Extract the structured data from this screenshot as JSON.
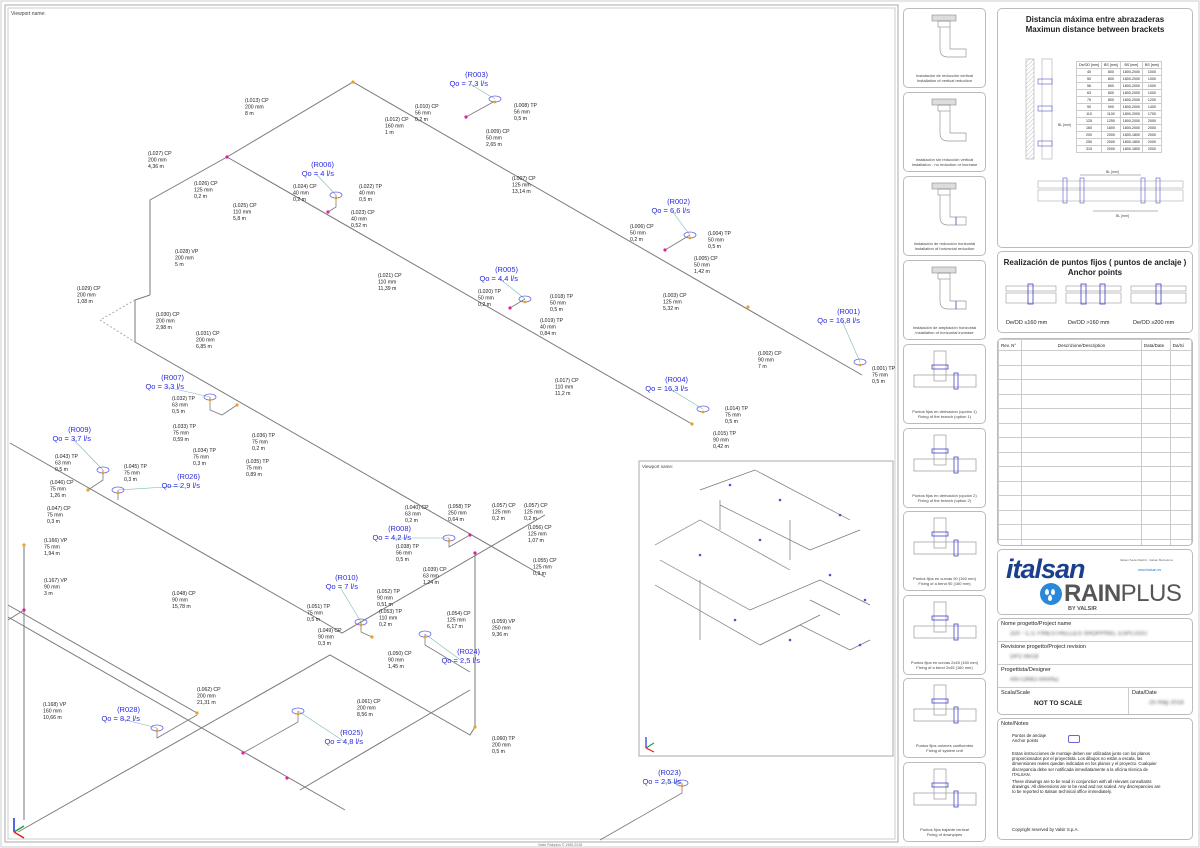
{
  "viewport": {
    "label": "Viewport name:",
    "inset_label": "Viewport name:"
  },
  "colors": {
    "pipe": "#7a7a7a",
    "leader": "#7fb8b0",
    "outlet_label": "#2a2ae0",
    "fitting": "#f0a020",
    "junction": "#e020a0"
  },
  "labels": [
    {
      "id": "(L001) TP",
      "dia": "75 mm",
      "len": "0,5 m"
    },
    {
      "id": "(L002) CP",
      "dia": "90 mm",
      "len": "7 m"
    },
    {
      "id": "(L003) CP",
      "dia": "125 mm",
      "len": "5,32 m"
    },
    {
      "id": "(L004) TP",
      "dia": "50 mm",
      "len": "0,5 m"
    },
    {
      "id": "(L005) CP",
      "dia": "50 mm",
      "len": "1,42 m"
    },
    {
      "id": "(L006) CP",
      "dia": "50 mm",
      "len": "0,2 m"
    },
    {
      "id": "(L007) CP",
      "dia": "125 mm",
      "len": "13,14 m"
    },
    {
      "id": "(L008) TP",
      "dia": "56 mm",
      "len": "0,5 m"
    },
    {
      "id": "(L009) CP",
      "dia": "50 mm",
      "len": "2,65 m"
    },
    {
      "id": "(L010) CP",
      "dia": "56 mm",
      "len": "0,2 m"
    },
    {
      "id": "(L012) CP",
      "dia": "160 mm",
      "len": "1 m"
    },
    {
      "id": "(L013) CP",
      "dia": "200 mm",
      "len": "8 m"
    },
    {
      "id": "(L014) TP",
      "dia": "75 mm",
      "len": "0,5 m"
    },
    {
      "id": "(L015) TP",
      "dia": "90 mm",
      "len": "0,42 m"
    },
    {
      "id": "(L017) CP",
      "dia": "110 mm",
      "len": "11,2 m"
    },
    {
      "id": "(L018) TP",
      "dia": "50 mm",
      "len": "0,5 m"
    },
    {
      "id": "(L019) TP",
      "dia": "40 mm",
      "len": "0,84 m"
    },
    {
      "id": "(L020) TP",
      "dia": "50 mm",
      "len": "0,2 m"
    },
    {
      "id": "(L021) CP",
      "dia": "110 mm",
      "len": "11,39 m"
    },
    {
      "id": "(L022) TP",
      "dia": "40 mm",
      "len": "0,5 m"
    },
    {
      "id": "(L023) CP",
      "dia": "40 mm",
      "len": "0,52 m"
    },
    {
      "id": "(L024) CP",
      "dia": "40 mm",
      "len": "0,2 m"
    },
    {
      "id": "(L025) CP",
      "dia": "110 mm",
      "len": "5,8 m"
    },
    {
      "id": "(L026) CP",
      "dia": "125 mm",
      "len": "0,2 m"
    },
    {
      "id": "(L027) CP",
      "dia": "200 mm",
      "len": "4,36 m"
    },
    {
      "id": "(L028) VP",
      "dia": "200 mm",
      "len": "5 m"
    },
    {
      "id": "(L029) CP",
      "dia": "200 mm",
      "len": "1,08 m"
    },
    {
      "id": "(L030) CP",
      "dia": "200 mm",
      "len": "2,98 m"
    },
    {
      "id": "(L031) CP",
      "dia": "200 mm",
      "len": "6,85 m"
    },
    {
      "id": "(L032) TP",
      "dia": "63 mm",
      "len": "0,5 m"
    },
    {
      "id": "(L033) TP",
      "dia": "75 mm",
      "len": "0,59 m"
    },
    {
      "id": "(L034) TP",
      "dia": "75 mm",
      "len": "0,3 m"
    },
    {
      "id": "(L035) TP",
      "dia": "75 mm",
      "len": "0,89 m"
    },
    {
      "id": "(L036) TP",
      "dia": "75 mm",
      "len": "0,2 m"
    },
    {
      "id": "(L043) TP",
      "dia": "63 mm",
      "len": "0,5 m"
    },
    {
      "id": "(L045) TP",
      "dia": "75 mm",
      "len": "0,3 m"
    },
    {
      "id": "(L046) CP",
      "dia": "75 mm",
      "len": "1,26 m"
    },
    {
      "id": "(L047) CP",
      "dia": "75 mm",
      "len": "0,3 m"
    },
    {
      "id": "(L166) VP",
      "dia": "75 mm",
      "len": "1,94 m"
    },
    {
      "id": "(L167) VP",
      "dia": "90 mm",
      "len": "3 m"
    },
    {
      "id": "(L048) CP",
      "dia": "90 mm",
      "len": "15,78 m"
    },
    {
      "id": "(L168) VP",
      "dia": "160 mm",
      "len": "10,66 m"
    },
    {
      "id": "(L062) CP",
      "dia": "200 mm",
      "len": "21,31 m"
    },
    {
      "id": "(L040) CP",
      "dia": "63 mm",
      "len": "0,2 m"
    },
    {
      "id": "(L058) TP",
      "dia": "250 mm",
      "len": "0,64 m"
    },
    {
      "id": "(L057) CP",
      "dia": "125 mm",
      "len": "0,2 m"
    },
    {
      "id": "(L057) CP",
      "dia": "125 mm",
      "len": "0,2 m"
    },
    {
      "id": "(L056) CP",
      "dia": "125 mm",
      "len": "1,07 m"
    },
    {
      "id": "(L038) TP",
      "dia": "56 mm",
      "len": "0,5 m"
    },
    {
      "id": "(L039) CP",
      "dia": "63 mm",
      "len": "1,24 m"
    },
    {
      "id": "(L055) CP",
      "dia": "125 mm",
      "len": "0,3 m"
    },
    {
      "id": "(L052) TP",
      "dia": "90 mm",
      "len": "0,51 m"
    },
    {
      "id": "(L051) TP",
      "dia": "75 mm",
      "len": "0,5 m"
    },
    {
      "id": "(L053) TP",
      "dia": "110 mm",
      "len": "0,2 m"
    },
    {
      "id": "(L049) CP",
      "dia": "90 mm",
      "len": "0,3 m"
    },
    {
      "id": "(L054) CP",
      "dia": "125 mm",
      "len": "6,17 m"
    },
    {
      "id": "(L059) VP",
      "dia": "250 mm",
      "len": "9,36 m"
    },
    {
      "id": "(L050) CP",
      "dia": "90 mm",
      "len": "1,45 m"
    },
    {
      "id": "(L061) CP",
      "dia": "200 mm",
      "len": "8,56 m"
    },
    {
      "id": "(L060) TP",
      "dia": "200 mm",
      "len": "0,5 m"
    }
  ],
  "outlets": [
    {
      "id": "(R001)",
      "flow": "Qo = 16,8 l/s"
    },
    {
      "id": "(R002)",
      "flow": "Qo = 6,6 l/s"
    },
    {
      "id": "(R003)",
      "flow": "Qo = 7,3 l/s"
    },
    {
      "id": "(R004)",
      "flow": "Qo = 16,3 l/s"
    },
    {
      "id": "(R005)",
      "flow": "Qo = 4,4 l/s"
    },
    {
      "id": "(R006)",
      "flow": "Qo = 4 l/s"
    },
    {
      "id": "(R007)",
      "flow": "Qo = 3,3 l/s"
    },
    {
      "id": "(R008)",
      "flow": "Qo = 4,2 l/s"
    },
    {
      "id": "(R009)",
      "flow": "Qo = 3,7 l/s"
    },
    {
      "id": "(R010)",
      "flow": "Qo = 7 l/s"
    },
    {
      "id": "(R024)",
      "flow": "Qo = 2,5 l/s"
    },
    {
      "id": "(R025)",
      "flow": "Qo = 4,8 l/s"
    },
    {
      "id": "(R026)",
      "flow": "Qo = 2,9 l/s"
    },
    {
      "id": "(R028)",
      "flow": "Qo = 8,2 l/s"
    },
    {
      "id": "(R023)",
      "flow": "Qo = 2,5 l/s"
    }
  ],
  "details": [
    {
      "es": "Instalación de reducción vertical",
      "en": "Installation of vertical reduction"
    },
    {
      "es": "Instalación sin reducción vertical",
      "en": "Installation - no reduction or increase"
    },
    {
      "es": "Instalación de reducción horizontal",
      "en": "Installation of horizontal reduction"
    },
    {
      "es": "Instalación de ampliación horizontal",
      "en": "Installation of horizontal increase"
    },
    {
      "es": "Puntos fijos en derivación (opción 1)",
      "en": "Fixing of the branch (option 1)"
    },
    {
      "es": "Puntos fijos en derivación (opción 2)",
      "en": "Fixing of the branch (option 2)"
    },
    {
      "es": "Puntos fijos en curvas 90 (160 mm)",
      "en": "Fixing of a bend 90 (160 mm)"
    },
    {
      "es": "Puntos fijos en curvas 2x45 (160 mm)",
      "en": "Fixing of a bend 2x45 (160 mm)"
    },
    {
      "es": "Puntos fijos uniones confluentes",
      "en": "Fixing of system unit"
    },
    {
      "es": "Puntos fijos bajante vertical",
      "en": "Fixing of downpipes"
    }
  ],
  "brackets": {
    "title_es": "Distancia máxima entre abrazaderas",
    "title_en": "Maximun distance between brackets",
    "headers": [
      "De/OD [mm]",
      "BS [mm]",
      "BS [mm]",
      "BS [mm]"
    ],
    "rows": [
      [
        "40",
        "800",
        "1800-2000",
        "1000"
      ],
      [
        "50",
        "800",
        "1800-2000",
        "1000"
      ],
      [
        "56",
        "800",
        "1800-2000",
        "1000"
      ],
      [
        "63",
        "800",
        "1800-2000",
        "1000"
      ],
      [
        "75",
        "800",
        "1800-2000",
        "1200"
      ],
      [
        "90",
        "900",
        "1800-2000",
        "1400"
      ],
      [
        "110",
        "1100",
        "1800-2000",
        "1700"
      ],
      [
        "125",
        "1250",
        "1800-2000",
        "2000"
      ],
      [
        "160",
        "1600",
        "1800-2000",
        "2000"
      ],
      [
        "200",
        "2000",
        "1800-1800",
        "2000"
      ],
      [
        "250",
        "2000",
        "1800-1800",
        "2000"
      ],
      [
        "315",
        "2000",
        "1800-1800",
        "2000"
      ]
    ],
    "dim_labels": [
      "BL [mm]",
      "BL [mm]",
      "BL [mm]"
    ]
  },
  "anchors": {
    "title_es": "Realización de puntos fijos ( puntos de anclaje )",
    "title_en": "Anchor points",
    "items": [
      "De/OD ≤160 mm",
      "De/OD >160 mm",
      "De/OD ≥200 mm"
    ]
  },
  "revisions": {
    "headers": [
      "Rev. N°",
      "Descrizione/Description",
      "Data/Date",
      "Da/Si"
    ]
  },
  "brand": {
    "italsan": "italsan",
    "rainplus_bold": "RAIN",
    "rainplus_light": "PLUS",
    "by": "BY VALSIR",
    "contact": "Italsan Sede Madrid · Italsan Barcelona",
    "web": "www.italsan.es"
  },
  "project": {
    "name_label": "Nome progetto/Project name",
    "name_value": "320 - C.C FINESTRELLES SHOPPING, ESPLUGU",
    "rev_label": "Revisione progetto/Project revision",
    "rev_value": "DP2 rev18",
    "designer_label": "Progettista/Designer",
    "designer_value": "ANTONIO ARANZ",
    "scale_label": "Scala/Scale",
    "scale_value": "NOT TO SCALE",
    "date_label": "Data/Date",
    "date_value": "25 may 2018"
  },
  "notes": {
    "label": "Note/Notes",
    "anchor_es": "Puntos de anclaje",
    "anchor_en": "Anchor points",
    "para_es": "Estas instrucciones de montaje deben ser utilizadas junto con los planos proporcionados por el proyectista. Los dibujos no están a escala, las dimensiones reales quedan indicadas en los planos y el proyecto. Cualquier discrepancia debe ser notificada inmediatamente a la oficina técnica de ITALSAN.",
    "para_en": "These drawings are to be read in conjunction with all relevant consultants drawings. All dimensions are to be read and not scaled. Any discrepancies are to be reported to Italsan technical office immediately.",
    "copyright": "Copyright reserved by Valsir S.p.A."
  },
  "footer": "Valsir Rainplus © 1969-2018"
}
